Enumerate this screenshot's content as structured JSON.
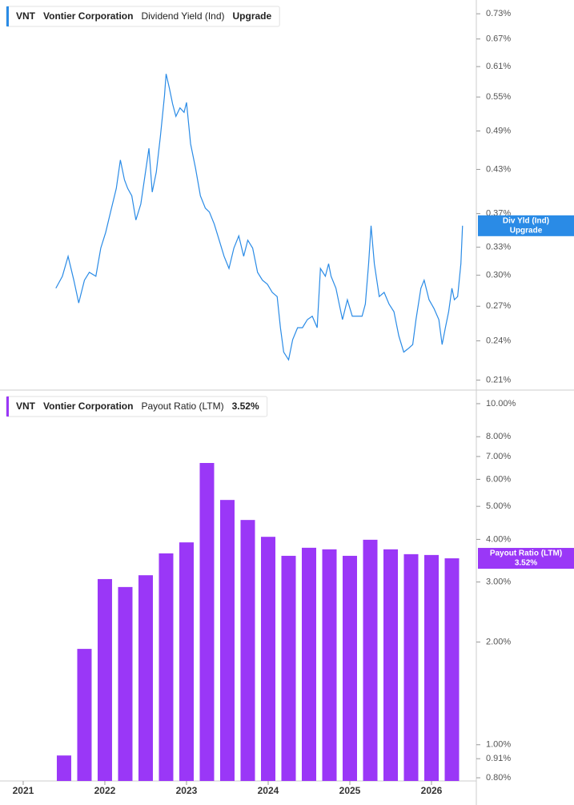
{
  "chart_data": [
    {
      "type": "line",
      "ticker": "VNT",
      "company": "Vontier Corporation",
      "status": "Upgrade",
      "tag_label": "Div Yld (Ind)",
      "log_scale": true,
      "xlim": [
        2020.716,
        2026.549
      ],
      "ylim": [
        0.203,
        0.765
      ],
      "yticks": [
        {
          "value": 0.21,
          "label": "0.21%"
        },
        {
          "value": 0.24,
          "label": "0.24%"
        },
        {
          "value": 0.27,
          "label": "0.27%"
        },
        {
          "value": 0.3,
          "label": "0.30%"
        },
        {
          "value": 0.33,
          "label": "0.33%"
        },
        {
          "value": 0.37,
          "label": "0.37%"
        },
        {
          "value": 0.43,
          "label": "0.43%"
        },
        {
          "value": 0.49,
          "label": "0.49%"
        },
        {
          "value": 0.55,
          "label": "0.55%"
        },
        {
          "value": 0.61,
          "label": "0.61%"
        },
        {
          "value": 0.67,
          "label": "0.67%"
        },
        {
          "value": 0.73,
          "label": "0.73%"
        }
      ],
      "x": [
        2021.4,
        2021.48,
        2021.55,
        2021.62,
        2021.68,
        2021.75,
        2021.81,
        2021.89,
        2021.95,
        2022.01,
        2022.07,
        2022.14,
        2022.19,
        2022.24,
        2022.28,
        2022.33,
        2022.38,
        2022.44,
        2022.49,
        2022.54,
        2022.58,
        2022.63,
        2022.68,
        2022.73,
        2022.75,
        2022.79,
        2022.83,
        2022.87,
        2022.92,
        2022.97,
        2023.0,
        2023.05,
        2023.11,
        2023.17,
        2023.23,
        2023.28,
        2023.34,
        2023.4,
        2023.46,
        2023.52,
        2023.58,
        2023.64,
        2023.7,
        2023.75,
        2023.81,
        2023.87,
        2023.93,
        2023.99,
        2024.05,
        2024.11,
        2024.15,
        2024.19,
        2024.25,
        2024.3,
        2024.36,
        2024.42,
        2024.48,
        2024.54,
        2024.6,
        2024.64,
        2024.7,
        2024.74,
        2024.77,
        2024.83,
        2024.87,
        2024.91,
        2024.97,
        2025.03,
        2025.09,
        2025.15,
        2025.19,
        2025.23,
        2025.26,
        2025.3,
        2025.36,
        2025.42,
        2025.48,
        2025.54,
        2025.6,
        2025.66,
        2025.72,
        2025.77,
        2025.81,
        2025.87,
        2025.91,
        2025.97,
        2026.03,
        2026.09,
        2026.13,
        2026.17,
        2026.21,
        2026.25,
        2026.28,
        2026.32,
        2026.36,
        2026.38
      ],
      "series": [
        {
          "name": "Dividend Yield (Ind)",
          "color": "#2a8be6",
          "values": [
            0.287,
            0.299,
            0.32,
            0.295,
            0.273,
            0.295,
            0.303,
            0.299,
            0.329,
            0.347,
            0.372,
            0.403,
            0.444,
            0.415,
            0.403,
            0.393,
            0.362,
            0.382,
            0.42,
            0.462,
            0.398,
            0.426,
            0.481,
            0.552,
            0.595,
            0.567,
            0.537,
            0.515,
            0.53,
            0.522,
            0.54,
            0.469,
            0.432,
            0.393,
            0.377,
            0.372,
            0.357,
            0.338,
            0.32,
            0.307,
            0.329,
            0.343,
            0.32,
            0.338,
            0.329,
            0.303,
            0.295,
            0.291,
            0.283,
            0.279,
            0.251,
            0.231,
            0.225,
            0.241,
            0.251,
            0.251,
            0.258,
            0.261,
            0.251,
            0.307,
            0.299,
            0.312,
            0.299,
            0.287,
            0.272,
            0.258,
            0.276,
            0.261,
            0.261,
            0.261,
            0.272,
            0.312,
            0.355,
            0.312,
            0.279,
            0.283,
            0.272,
            0.265,
            0.244,
            0.231,
            0.234,
            0.237,
            0.258,
            0.287,
            0.295,
            0.276,
            0.268,
            0.258,
            0.237,
            0.251,
            0.265,
            0.287,
            0.276,
            0.279,
            0.312,
            0.355
          ]
        }
      ]
    },
    {
      "type": "bar",
      "ticker": "VNT",
      "company": "Vontier Corporation",
      "last_value_label": "3.52%",
      "log_scale": true,
      "xlim": [
        2020.716,
        2026.549
      ],
      "xticks": [
        2021,
        2022,
        2023,
        2024,
        2025,
        2026
      ],
      "ylim": [
        0.783,
        10.96
      ],
      "yticks": [
        {
          "value": 0.8,
          "label": "0.80%"
        },
        {
          "value": 0.91,
          "label": "0.91%"
        },
        {
          "value": 1.0,
          "label": "1.00%"
        },
        {
          "value": 2.0,
          "label": "2.00%"
        },
        {
          "value": 3.0,
          "label": "3.00%"
        },
        {
          "value": 4.0,
          "label": "4.00%"
        },
        {
          "value": 5.0,
          "label": "5.00%"
        },
        {
          "value": 6.0,
          "label": "6.00%"
        },
        {
          "value": 7.0,
          "label": "7.00%"
        },
        {
          "value": 8.0,
          "label": "8.00%"
        },
        {
          "value": 10.0,
          "label": "10.00%"
        }
      ],
      "x": [
        2021.5,
        2021.75,
        2022.0,
        2022.25,
        2022.5,
        2022.75,
        2023.0,
        2023.25,
        2023.5,
        2023.75,
        2024.0,
        2024.25,
        2024.5,
        2024.75,
        2025.0,
        2025.25,
        2025.5,
        2025.75,
        2026.0,
        2026.25
      ],
      "series": [
        {
          "name": "Payout Ratio (LTM)",
          "color": "#9a37f7",
          "values": [
            0.93,
            1.91,
            3.06,
            2.9,
            3.14,
            3.64,
            3.92,
            6.7,
            5.22,
            4.56,
            4.07,
            3.58,
            3.78,
            3.74,
            3.58,
            3.99,
            3.74,
            3.62,
            3.6,
            3.52
          ]
        }
      ]
    }
  ]
}
